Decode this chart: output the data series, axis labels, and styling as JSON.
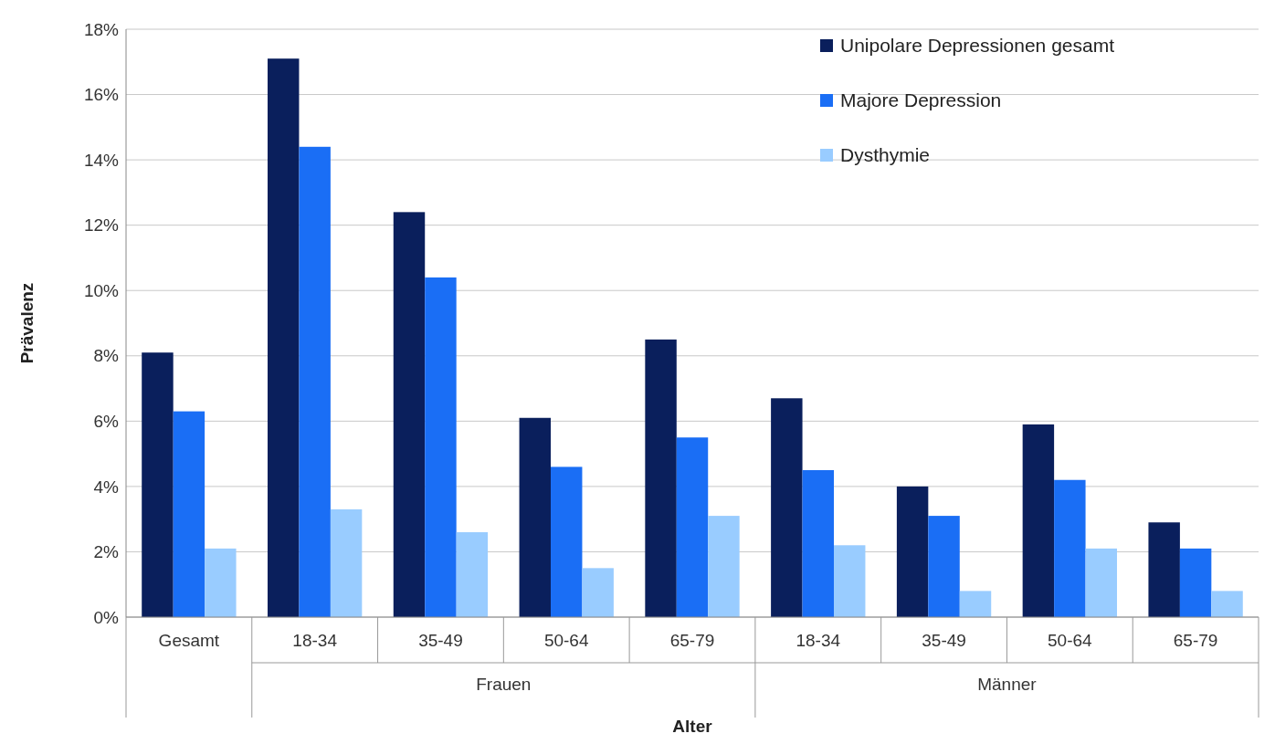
{
  "chart_data": {
    "type": "bar",
    "xlabel": "Alter",
    "ylabel": "Prävalenz",
    "categories": [
      "Gesamt",
      "18-34",
      "35-49",
      "50-64",
      "65-79",
      "18-34",
      "35-49",
      "50-64",
      "65-79"
    ],
    "series": [
      {
        "name": "Unipolare Depressionen gesamt",
        "color": "#0a1f5c",
        "values": [
          8.1,
          17.1,
          12.4,
          6.1,
          8.5,
          6.7,
          4.0,
          5.9,
          2.9
        ]
      },
      {
        "name": "Majore Depression",
        "color": "#1a6ef5",
        "values": [
          6.3,
          14.4,
          10.4,
          4.6,
          5.5,
          4.5,
          3.1,
          4.2,
          2.1
        ]
      },
      {
        "name": "Dysthymie",
        "color": "#99ccff",
        "values": [
          2.1,
          3.3,
          2.6,
          1.5,
          3.1,
          2.2,
          0.8,
          2.1,
          0.8
        ]
      }
    ],
    "ylim": [
      0,
      18
    ],
    "yticks": [
      {
        "value": 0,
        "label": "0%"
      },
      {
        "value": 2,
        "label": "2%"
      },
      {
        "value": 4,
        "label": "4%"
      },
      {
        "value": 6,
        "label": "6%"
      },
      {
        "value": 8,
        "label": "8%"
      },
      {
        "value": 10,
        "label": "10%"
      },
      {
        "value": 12,
        "label": "12%"
      },
      {
        "value": 14,
        "label": "14%"
      },
      {
        "value": 16,
        "label": "16%"
      },
      {
        "value": 18,
        "label": "18%"
      }
    ],
    "grid": "y",
    "legend": "top right",
    "annotations": [
      "Frauen",
      "Männer"
    ]
  }
}
